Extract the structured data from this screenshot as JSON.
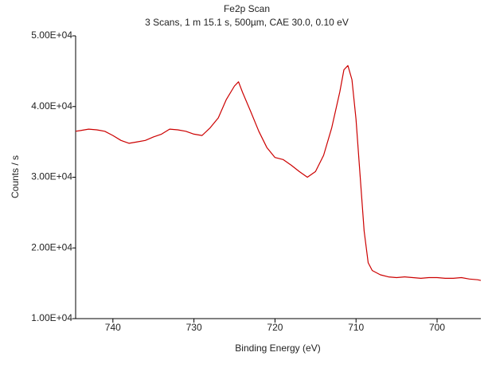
{
  "chart_data": {
    "type": "line",
    "title": "Fe2p Scan",
    "subtitle": "3 Scans,  1 m 15.1 s,  500µm,  CAE 30.0,  0.10 eV",
    "x_label": "Binding Energy (eV)",
    "y_label": "Counts / s",
    "x": [
      744.6,
      744,
      743,
      742,
      741,
      740,
      739,
      738,
      737,
      736,
      735,
      734,
      733,
      732,
      731,
      730,
      729,
      728,
      727,
      726,
      725,
      724.5,
      724,
      723,
      722,
      721,
      720,
      719,
      718,
      717,
      716,
      715,
      714,
      713,
      712,
      711.5,
      711,
      710.5,
      710,
      709.5,
      709,
      708.5,
      708,
      707,
      706,
      705,
      704,
      703,
      702,
      701,
      700,
      699,
      698,
      697,
      696,
      695,
      694.6
    ],
    "series": [
      {
        "name": "Fe2p",
        "color": "#cc0000",
        "values": [
          36500,
          36600,
          36800,
          36700,
          36500,
          35900,
          35200,
          34800,
          35000,
          35200,
          35700,
          36100,
          36800,
          36700,
          36500,
          36100,
          35900,
          37000,
          38400,
          41000,
          42900,
          43500,
          42000,
          39300,
          36500,
          34200,
          32800,
          32500,
          31700,
          30800,
          30000,
          30800,
          33100,
          37000,
          42100,
          45200,
          45800,
          43800,
          38200,
          30300,
          22400,
          17900,
          16800,
          16200,
          15900,
          15800,
          15900,
          15800,
          15700,
          15800,
          15800,
          15700,
          15700,
          15800,
          15600,
          15500,
          15400
        ]
      }
    ],
    "xlim": [
      744.6,
      694.6
    ],
    "ylim": [
      10000,
      50000
    ],
    "xticks": [
      740,
      730,
      720,
      710,
      700
    ],
    "yticks": [
      {
        "value": 10000,
        "label": "1.00E+04"
      },
      {
        "value": 20000,
        "label": "2.00E+04"
      },
      {
        "value": 30000,
        "label": "3.00E+04"
      },
      {
        "value": 40000,
        "label": "4.00E+04"
      },
      {
        "value": 50000,
        "label": "5.00E+04"
      }
    ]
  }
}
